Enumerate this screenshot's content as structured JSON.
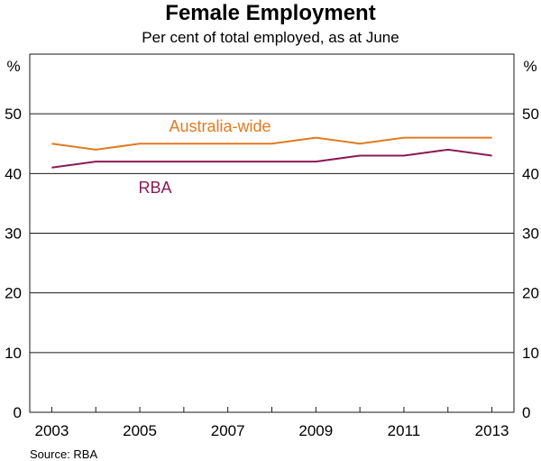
{
  "chart_data": {
    "type": "line",
    "title": "Female Employment",
    "subtitle": "Per cent of total employed, as at June",
    "unit_label": "%",
    "x": [
      2003,
      2004,
      2005,
      2006,
      2007,
      2008,
      2009,
      2010,
      2011,
      2012,
      2013
    ],
    "x_tick_labels": [
      "2003",
      "2005",
      "2007",
      "2009",
      "2011",
      "2013"
    ],
    "y_ticks": [
      0,
      10,
      20,
      30,
      40,
      50
    ],
    "ylim": [
      0,
      60
    ],
    "grid": true,
    "series": [
      {
        "name": "Australia-wide",
        "color": "#e07b22",
        "values": [
          45,
          44,
          45,
          45,
          45,
          45,
          46,
          45,
          46,
          46,
          46
        ]
      },
      {
        "name": "RBA",
        "color": "#8b1a56",
        "values": [
          41,
          42,
          42,
          42,
          42,
          42,
          42,
          43,
          43,
          44,
          43
        ]
      }
    ],
    "source": "Source: RBA"
  }
}
